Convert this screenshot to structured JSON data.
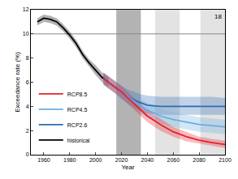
{
  "chart_data": {
    "type": "line",
    "x_label": "Year",
    "y_label": "Exceedance rate (%)",
    "xlim": [
      1950,
      2100
    ],
    "xticks": [
      1960,
      1980,
      2000,
      2020,
      2040,
      2060,
      2080,
      2100
    ],
    "ylim": [
      0,
      12
    ],
    "yticks": [
      0,
      2,
      4,
      6,
      8,
      10,
      12
    ],
    "grid": false,
    "legend": "lower left",
    "reference_line": 10,
    "shaded_periods": [
      {
        "start": 2016,
        "end": 2035,
        "color": "#b3b3b3"
      },
      {
        "start": 2046,
        "end": 2065,
        "color": "#e3e3e3"
      },
      {
        "start": 2081,
        "end": 2100,
        "color": "#e3e3e3"
      }
    ],
    "annotations": [
      {
        "text": "18"
      }
    ],
    "series": [
      {
        "name": "historical",
        "color": "#000000",
        "x": [
          1955,
          1960,
          1965,
          1970,
          1975,
          1980,
          1985,
          1990,
          1995,
          2000,
          2005,
          2010
        ],
        "values": [
          11.0,
          11.3,
          11.2,
          11.0,
          10.5,
          9.9,
          9.2,
          8.3,
          7.6,
          7.0,
          6.4,
          6.0
        ],
        "lower": [
          10.7,
          11.0,
          10.9,
          10.7,
          10.2,
          9.6,
          8.9,
          8.0,
          7.3,
          6.6,
          6.0,
          5.6
        ],
        "upper": [
          11.3,
          11.6,
          11.5,
          11.3,
          10.8,
          10.2,
          9.5,
          8.6,
          7.9,
          7.4,
          6.8,
          6.4
        ]
      },
      {
        "name": "RCP2.6",
        "color": "#2e6db4",
        "x": [
          2006,
          2010,
          2015,
          2020,
          2025,
          2030,
          2035,
          2040,
          2050,
          2060,
          2070,
          2080,
          2090,
          2100
        ],
        "values": [
          6.3,
          6.0,
          5.6,
          5.2,
          4.8,
          4.5,
          4.3,
          4.1,
          4.0,
          4.0,
          4.0,
          4.05,
          4.05,
          4.0
        ],
        "lower": [
          5.8,
          5.5,
          5.1,
          4.6,
          4.2,
          3.9,
          3.6,
          3.4,
          3.3,
          3.3,
          3.3,
          3.3,
          3.3,
          3.3
        ],
        "upper": [
          6.8,
          6.5,
          6.1,
          5.7,
          5.4,
          5.2,
          5.0,
          4.9,
          4.8,
          4.8,
          4.8,
          4.8,
          4.8,
          4.7
        ]
      },
      {
        "name": "RCP4.5",
        "color": "#6aaee0",
        "x": [
          2006,
          2010,
          2015,
          2020,
          2025,
          2030,
          2035,
          2040,
          2050,
          2060,
          2070,
          2080,
          2090,
          2100
        ],
        "values": [
          6.3,
          6.0,
          5.6,
          5.2,
          4.8,
          4.4,
          4.0,
          3.7,
          3.2,
          2.9,
          2.7,
          2.5,
          2.4,
          2.3
        ],
        "lower": [
          5.8,
          5.5,
          5.1,
          4.6,
          4.2,
          3.8,
          3.4,
          3.1,
          2.6,
          2.3,
          2.1,
          1.9,
          1.8,
          1.7
        ],
        "upper": [
          6.8,
          6.5,
          6.1,
          5.7,
          5.3,
          5.0,
          4.6,
          4.3,
          3.8,
          3.5,
          3.3,
          3.1,
          3.0,
          2.9
        ]
      },
      {
        "name": "RCP8.5",
        "color": "#e8202a",
        "x": [
          2006,
          2010,
          2015,
          2020,
          2025,
          2030,
          2035,
          2040,
          2050,
          2060,
          2070,
          2080,
          2090,
          2100
        ],
        "values": [
          6.3,
          6.0,
          5.6,
          5.2,
          4.7,
          4.2,
          3.7,
          3.2,
          2.5,
          1.9,
          1.5,
          1.2,
          1.0,
          0.85
        ],
        "lower": [
          5.8,
          5.5,
          5.1,
          4.7,
          4.2,
          3.7,
          3.2,
          2.7,
          2.0,
          1.5,
          1.1,
          0.9,
          0.7,
          0.55
        ],
        "upper": [
          6.8,
          6.5,
          6.1,
          5.7,
          5.2,
          4.7,
          4.2,
          3.7,
          3.0,
          2.3,
          1.9,
          1.5,
          1.3,
          1.15
        ]
      }
    ]
  }
}
